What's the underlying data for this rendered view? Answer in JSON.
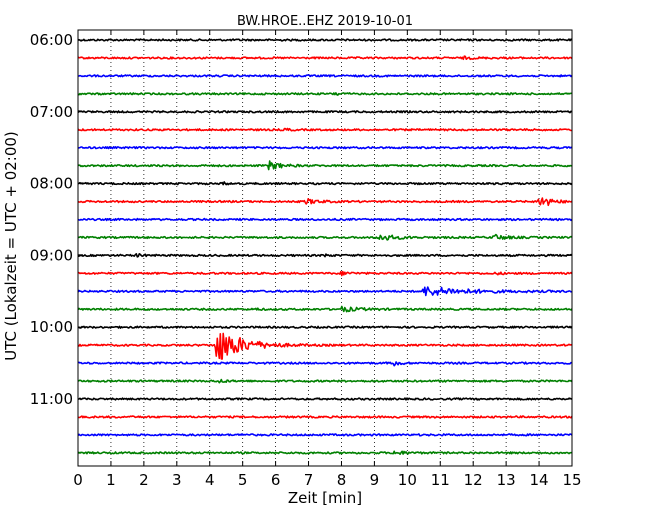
{
  "chart_data": {
    "type": "line",
    "title": "BW.HROE..EHZ 2019-10-01",
    "xlabel": "Zeit  [min]",
    "ylabel": "UTC (Lokalzeit = UTC + 02:00)",
    "xlim": [
      0,
      15
    ],
    "xticks": [
      "0",
      "1",
      "2",
      "3",
      "4",
      "5",
      "6",
      "7",
      "8",
      "9",
      "10",
      "11",
      "12",
      "13",
      "14",
      "15"
    ],
    "yticks": [
      {
        "label": "06:00",
        "trace": 0
      },
      {
        "label": "07:00",
        "trace": 4
      },
      {
        "label": "08:00",
        "trace": 8
      },
      {
        "label": "09:00",
        "trace": 12
      },
      {
        "label": "10:00",
        "trace": 16
      },
      {
        "label": "11:00",
        "trace": 20
      }
    ],
    "trace_interval_min": 15,
    "start_time": "06:00",
    "colors": [
      "#000000",
      "#ff0000",
      "#0000ff",
      "#008000"
    ],
    "grid": "x",
    "traces": [
      {
        "start": "06:00",
        "events": []
      },
      {
        "start": "06:15",
        "events": [
          {
            "t": 11.7,
            "amp": 0.25,
            "dur": 0.6
          }
        ]
      },
      {
        "start": "06:30",
        "events": []
      },
      {
        "start": "06:45",
        "events": [
          {
            "t": 7.8,
            "amp": 0.45,
            "dur": 0.3
          }
        ]
      },
      {
        "start": "07:00",
        "events": []
      },
      {
        "start": "07:15",
        "events": [
          {
            "t": 6.3,
            "amp": 0.3,
            "dur": 0.3
          }
        ]
      },
      {
        "start": "07:30",
        "events": []
      },
      {
        "start": "07:45",
        "events": [
          {
            "t": 5.8,
            "amp": 1.1,
            "dur": 0.7
          }
        ]
      },
      {
        "start": "08:00",
        "events": [
          {
            "t": 4.4,
            "amp": 0.4,
            "dur": 0.2
          }
        ]
      },
      {
        "start": "08:15",
        "events": [
          {
            "t": 6.9,
            "amp": 0.6,
            "dur": 0.8
          },
          {
            "t": 14.0,
            "amp": 2.0,
            "dur": 0.6
          }
        ]
      },
      {
        "start": "08:30",
        "events": []
      },
      {
        "start": "08:45",
        "events": [
          {
            "t": 9.1,
            "amp": 0.9,
            "dur": 1.0
          },
          {
            "t": 12.6,
            "amp": 0.7,
            "dur": 0.8
          }
        ]
      },
      {
        "start": "09:00",
        "events": [
          {
            "t": 1.8,
            "amp": 0.5,
            "dur": 0.3
          },
          {
            "t": 7.5,
            "amp": 0.3,
            "dur": 0.3
          }
        ]
      },
      {
        "start": "09:15",
        "events": [
          {
            "t": 8.0,
            "amp": 0.4,
            "dur": 0.5
          },
          {
            "t": 12.7,
            "amp": 0.3,
            "dur": 0.3
          }
        ]
      },
      {
        "start": "09:30",
        "events": [
          {
            "t": 10.5,
            "amp": 1.2,
            "dur": 2.5
          }
        ]
      },
      {
        "start": "09:45",
        "events": [
          {
            "t": 8.0,
            "amp": 0.6,
            "dur": 1.0
          },
          {
            "t": 5.4,
            "amp": 0.3,
            "dur": 0.2
          }
        ]
      },
      {
        "start": "10:00",
        "events": []
      },
      {
        "start": "10:15",
        "events": [
          {
            "t": 4.2,
            "amp": 4.8,
            "dur": 1.5
          }
        ]
      },
      {
        "start": "10:30",
        "events": [
          {
            "t": 9.6,
            "amp": 0.8,
            "dur": 0.3
          }
        ]
      },
      {
        "start": "10:45",
        "events": [
          {
            "t": 4.3,
            "amp": 0.5,
            "dur": 0.3
          }
        ]
      },
      {
        "start": "11:00",
        "events": []
      },
      {
        "start": "11:15",
        "events": []
      },
      {
        "start": "11:30",
        "events": [
          {
            "t": 5.0,
            "amp": 0.3,
            "dur": 0.2
          }
        ]
      },
      {
        "start": "11:45",
        "events": [
          {
            "t": 9.6,
            "amp": 0.5,
            "dur": 0.6
          }
        ]
      }
    ]
  }
}
